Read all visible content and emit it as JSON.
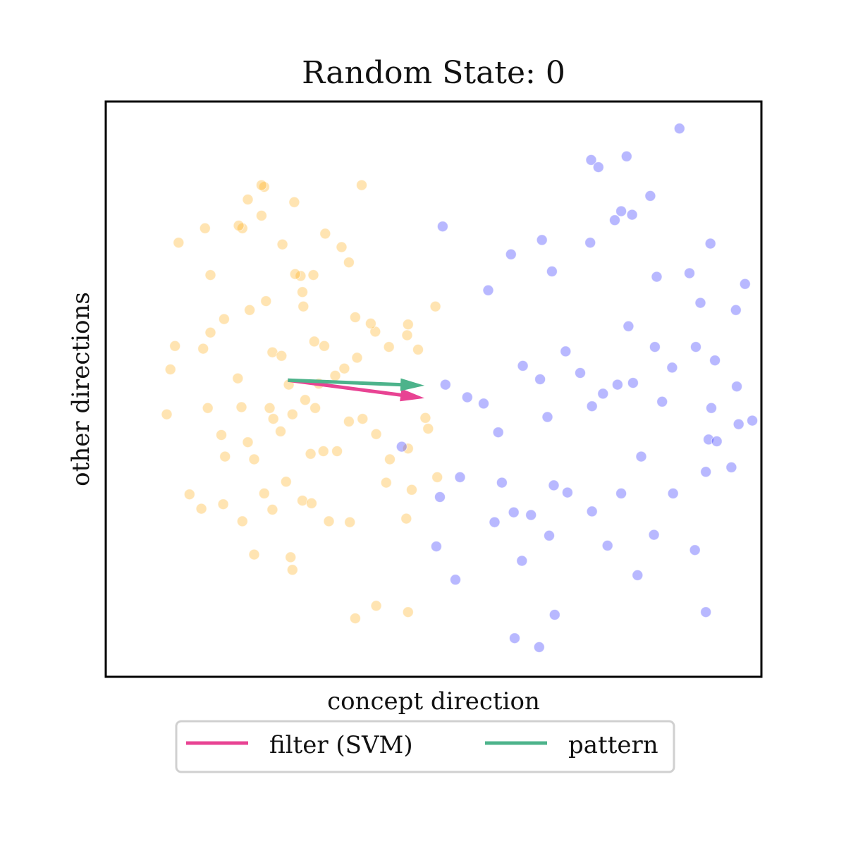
{
  "chart_data": {
    "type": "scatter",
    "title": "Random State: 0",
    "xlabel": "concept direction",
    "ylabel": "other directions",
    "xlim": [
      -3.6,
      3.6
    ],
    "ylim": [
      -3.2,
      3.2
    ],
    "grid": false,
    "ticks_visible": false,
    "legend_placement": "bottom-center-outside",
    "series": [
      {
        "group": "orange",
        "color": "#FFA500",
        "opacity": 0.3,
        "points": [
          [
            -2.8,
            1.63
          ],
          [
            -2.51,
            1.79
          ],
          [
            -2.45,
            1.27
          ],
          [
            -2.1,
            1.79
          ],
          [
            -2.14,
            1.82
          ],
          [
            -2.04,
            2.11
          ],
          [
            -1.86,
            2.25
          ],
          [
            -1.89,
            2.27
          ],
          [
            -1.89,
            1.93
          ],
          [
            -1.66,
            1.61
          ],
          [
            -1.53,
            2.08
          ],
          [
            -1.46,
            1.26
          ],
          [
            -1.52,
            1.28
          ],
          [
            -1.44,
            1.08
          ],
          [
            -1.32,
            1.27
          ],
          [
            -1.01,
            1.58
          ],
          [
            -0.93,
            1.41
          ],
          [
            -0.79,
            2.27
          ],
          [
            -1.19,
            1.73
          ],
          [
            -2.89,
            0.22
          ],
          [
            -2.84,
            0.48
          ],
          [
            -2.53,
            0.45
          ],
          [
            -2.45,
            0.63
          ],
          [
            -2.3,
            0.78
          ],
          [
            -2.15,
            0.12
          ],
          [
            -2.02,
            0.88
          ],
          [
            -1.84,
            0.98
          ],
          [
            -1.77,
            0.41
          ],
          [
            -1.67,
            0.37
          ],
          [
            -1.59,
            0.05
          ],
          [
            -1.43,
            0.92
          ],
          [
            -1.31,
            0.53
          ],
          [
            -1.2,
            0.48
          ],
          [
            -1.08,
            0.15
          ],
          [
            -0.98,
            0.23
          ],
          [
            -0.86,
            0.8
          ],
          [
            -0.84,
            0.35
          ],
          [
            -0.64,
            0.64
          ],
          [
            -0.49,
            0.47
          ],
          [
            -0.29,
            0.6
          ],
          [
            -0.28,
            0.72
          ],
          [
            -0.17,
            0.44
          ],
          [
            0.02,
            0.92
          ],
          [
            -0.69,
            0.73
          ],
          [
            -1.26,
            0.06
          ],
          [
            -2.93,
            -0.28
          ],
          [
            -2.48,
            -0.21
          ],
          [
            -2.33,
            -0.51
          ],
          [
            -2.29,
            -0.75
          ],
          [
            -2.11,
            -0.2
          ],
          [
            -2.04,
            -0.59
          ],
          [
            -1.97,
            -0.78
          ],
          [
            -1.8,
            -0.21
          ],
          [
            -1.55,
            -0.28
          ],
          [
            -1.41,
            -0.12
          ],
          [
            -1.35,
            -0.72
          ],
          [
            -1.21,
            -0.69
          ],
          [
            -1.06,
            -0.69
          ],
          [
            -0.93,
            -0.36
          ],
          [
            -0.78,
            -0.33
          ],
          [
            -0.63,
            -0.5
          ],
          [
            -0.48,
            -0.78
          ],
          [
            -0.28,
            -0.66
          ],
          [
            -0.09,
            -0.32
          ],
          [
            -0.24,
            -1.12
          ],
          [
            -1.68,
            -0.47
          ],
          [
            -1.76,
            -0.33
          ],
          [
            -1.3,
            -0.21
          ],
          [
            -2.68,
            -1.17
          ],
          [
            -2.55,
            -1.33
          ],
          [
            -2.31,
            -1.28
          ],
          [
            -2.1,
            -1.47
          ],
          [
            -1.97,
            -1.84
          ],
          [
            -1.86,
            -1.16
          ],
          [
            -1.77,
            -1.34
          ],
          [
            -1.62,
            -1.03
          ],
          [
            -1.44,
            -1.24
          ],
          [
            -1.34,
            -1.27
          ],
          [
            -1.15,
            -1.47
          ],
          [
            -0.92,
            -1.48
          ],
          [
            -0.52,
            -1.04
          ],
          [
            -0.3,
            -1.44
          ],
          [
            -1.55,
            -2.01
          ],
          [
            -1.57,
            -1.87
          ],
          [
            -0.28,
            -2.48
          ],
          [
            -0.63,
            -2.41
          ],
          [
            -0.86,
            -2.55
          ],
          [
            -0.06,
            -0.44
          ],
          [
            0.04,
            -0.98
          ]
        ]
      },
      {
        "group": "blue",
        "color": "#3333FF",
        "opacity": 0.35,
        "points": [
          [
            0.1,
            1.81
          ],
          [
            0.6,
            1.1
          ],
          [
            0.85,
            1.5
          ],
          [
            1.19,
            1.66
          ],
          [
            1.3,
            1.31
          ],
          [
            1.72,
            1.63
          ],
          [
            1.99,
            1.88
          ],
          [
            2.06,
            1.98
          ],
          [
            2.18,
            1.94
          ],
          [
            2.45,
            1.25
          ],
          [
            2.38,
            2.15
          ],
          [
            1.73,
            2.55
          ],
          [
            1.81,
            2.47
          ],
          [
            2.12,
            2.59
          ],
          [
            2.7,
            2.9
          ],
          [
            3.04,
            1.62
          ],
          [
            2.81,
            1.29
          ],
          [
            2.93,
            0.96
          ],
          [
            3.32,
            0.88
          ],
          [
            3.42,
            1.17
          ],
          [
            0.13,
            0.05
          ],
          [
            0.37,
            -0.09
          ],
          [
            0.98,
            0.26
          ],
          [
            1.17,
            0.11
          ],
          [
            1.45,
            0.42
          ],
          [
            1.61,
            0.18
          ],
          [
            1.86,
            -0.05
          ],
          [
            2.14,
            0.7
          ],
          [
            2.43,
            0.47
          ],
          [
            2.62,
            0.24
          ],
          [
            2.88,
            0.47
          ],
          [
            3.09,
            0.32
          ],
          [
            3.33,
            0.03
          ],
          [
            3.05,
            -0.21
          ],
          [
            2.51,
            -0.14
          ],
          [
            1.74,
            -0.19
          ],
          [
            1.25,
            -0.31
          ],
          [
            0.71,
            -0.48
          ],
          [
            0.55,
            -0.16
          ],
          [
            2.19,
            0.07
          ],
          [
            2.02,
            0.05
          ],
          [
            3.35,
            -0.39
          ],
          [
            3.5,
            -0.35
          ],
          [
            3.72,
            -0.09
          ],
          [
            -0.35,
            -0.64
          ],
          [
            0.07,
            -1.2
          ],
          [
            0.29,
            -0.98
          ],
          [
            0.75,
            -1.04
          ],
          [
            0.88,
            -1.37
          ],
          [
            1.32,
            -1.07
          ],
          [
            1.47,
            -1.15
          ],
          [
            1.74,
            -1.36
          ],
          [
            2.06,
            -1.16
          ],
          [
            2.28,
            -0.75
          ],
          [
            2.63,
            -1.16
          ],
          [
            2.99,
            -0.92
          ],
          [
            3.02,
            -0.56
          ],
          [
            3.11,
            -0.58
          ],
          [
            3.27,
            -0.87
          ],
          [
            0.03,
            -1.75
          ],
          [
            0.67,
            -1.48
          ],
          [
            0.97,
            -1.91
          ],
          [
            1.33,
            -2.51
          ],
          [
            1.27,
            -1.63
          ],
          [
            1.91,
            -1.74
          ],
          [
            2.24,
            -2.07
          ],
          [
            2.42,
            -1.62
          ],
          [
            2.87,
            -1.79
          ],
          [
            1.07,
            -1.4
          ],
          [
            0.24,
            -2.12
          ],
          [
            2.99,
            -2.48
          ],
          [
            0.89,
            -2.77
          ],
          [
            1.16,
            -2.87
          ]
        ]
      }
    ],
    "arrows": [
      {
        "name": "filter (SVM)",
        "color": "#E84393",
        "from": [
          -1.6,
          0.1
        ],
        "to": [
          -0.1,
          -0.1
        ]
      },
      {
        "name": "pattern",
        "color": "#4DB38B",
        "from": [
          -1.6,
          0.1
        ],
        "to": [
          -0.1,
          0.04
        ]
      }
    ],
    "legend": {
      "entries": [
        {
          "label": "filter (SVM)",
          "color": "#E84393"
        },
        {
          "label": "pattern",
          "color": "#4DB38B"
        }
      ]
    }
  }
}
